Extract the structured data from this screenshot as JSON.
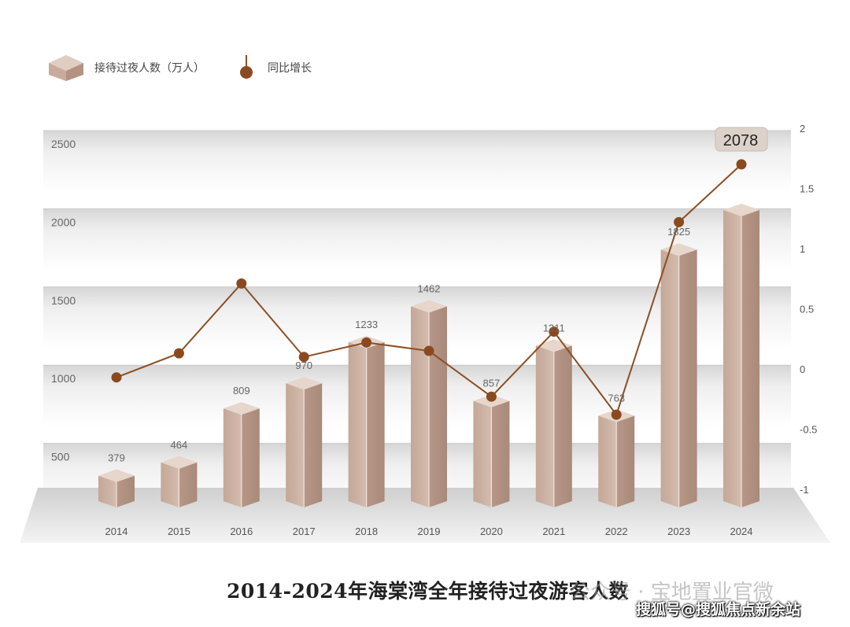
{
  "legend": {
    "bar_label": "接待过夜人数（万人）",
    "line_label": "同比增长"
  },
  "colors": {
    "bar": "#c9aea0",
    "line": "#8a4f24",
    "marker": "#8a4a20"
  },
  "chart_data": {
    "type": "bar",
    "categories": [
      "2014",
      "2015",
      "2016",
      "2017",
      "2018",
      "2019",
      "2020",
      "2021",
      "2022",
      "2023",
      "2024"
    ],
    "series": [
      {
        "name": "接待过夜人数（万人）",
        "type": "bar",
        "axis": "left",
        "values": [
          379,
          464,
          809,
          970,
          1233,
          1462,
          857,
          1211,
          763,
          1825,
          2078
        ]
      },
      {
        "name": "同比增长",
        "type": "line",
        "axis": "right",
        "values": [
          -0.07,
          0.13,
          0.71,
          0.1,
          0.22,
          0.15,
          -0.23,
          0.31,
          -0.38,
          1.22,
          1.7
        ]
      }
    ],
    "value_labels": [
      "379",
      "464",
      "809",
      "970",
      "1233",
      "1462",
      "857",
      "1211",
      "763",
      "1825",
      "2078"
    ],
    "highlight_label": "2078",
    "left_axis": {
      "ticks": [
        "500",
        "1000",
        "1500",
        "2000",
        "2500"
      ],
      "tick_values": [
        500,
        1000,
        1500,
        2000,
        2500
      ],
      "ylim": [
        0,
        2500
      ]
    },
    "right_axis": {
      "ticks": [
        "-1",
        "-0.5",
        "0",
        "0.5",
        "1",
        "1.5",
        "2"
      ],
      "tick_values": [
        -1,
        -0.5,
        0,
        0.5,
        1,
        1.5,
        2
      ],
      "ylim": [
        -1,
        2
      ]
    },
    "grid": true,
    "legend_position": "top-left",
    "title": "2014-2024年海棠湾全年接待过夜游客人数"
  },
  "watermarks": {
    "wechat": "公众号 · 宝地置业官微",
    "sohu": "搜狐号@搜狐焦点新余站"
  }
}
